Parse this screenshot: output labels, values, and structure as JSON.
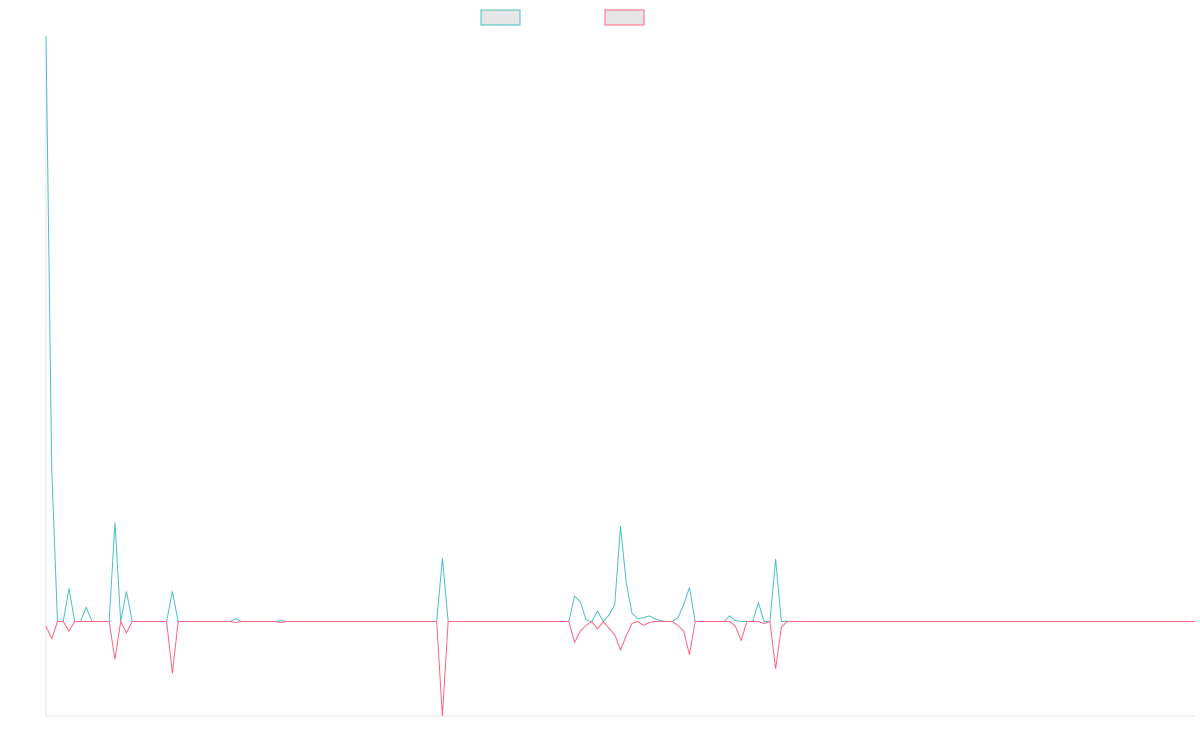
{
  "chart_data": {
    "type": "line",
    "title": "",
    "xlabel": "",
    "ylabel": "",
    "x_count": 200,
    "ylim": [
      -100,
      620
    ],
    "grid": false,
    "legend_position": "top-center",
    "series": [
      {
        "name": "",
        "color": "#4bc0c0",
        "fill": "#e6e6e6",
        "points": [
          [
            0,
            620
          ],
          [
            1,
            160
          ],
          [
            2,
            0
          ],
          [
            3,
            0
          ],
          [
            4,
            35
          ],
          [
            5,
            0
          ],
          [
            6,
            0
          ],
          [
            7,
            15
          ],
          [
            8,
            0
          ],
          [
            9,
            0
          ],
          [
            10,
            0
          ],
          [
            11,
            0
          ],
          [
            12,
            105
          ],
          [
            13,
            0
          ],
          [
            14,
            32
          ],
          [
            15,
            0
          ],
          [
            16,
            0
          ],
          [
            17,
            0
          ],
          [
            18,
            0
          ],
          [
            19,
            0
          ],
          [
            20,
            0
          ],
          [
            21,
            0
          ],
          [
            22,
            32
          ],
          [
            23,
            0
          ],
          [
            24,
            0
          ],
          [
            32,
            0
          ],
          [
            33,
            3
          ],
          [
            34,
            0
          ],
          [
            35,
            0
          ],
          [
            40,
            0
          ],
          [
            41,
            1
          ],
          [
            42,
            0
          ],
          [
            43,
            0
          ],
          [
            68,
            0
          ],
          [
            69,
            67
          ],
          [
            70,
            0
          ],
          [
            71,
            0
          ],
          [
            91,
            0
          ],
          [
            92,
            27
          ],
          [
            93,
            21
          ],
          [
            94,
            2
          ],
          [
            95,
            0
          ],
          [
            96,
            11
          ],
          [
            97,
            0
          ],
          [
            98,
            7
          ],
          [
            99,
            18
          ],
          [
            100,
            101
          ],
          [
            101,
            41
          ],
          [
            102,
            9
          ],
          [
            103,
            3
          ],
          [
            104,
            4
          ],
          [
            105,
            6
          ],
          [
            106,
            3
          ],
          [
            107,
            1
          ],
          [
            108,
            0
          ],
          [
            109,
            0
          ],
          [
            110,
            4
          ],
          [
            111,
            18
          ],
          [
            112,
            36
          ],
          [
            113,
            0
          ],
          [
            114,
            0
          ],
          [
            118,
            0
          ],
          [
            119,
            6
          ],
          [
            120,
            1
          ],
          [
            121,
            0
          ],
          [
            122,
            0
          ],
          [
            123,
            0
          ],
          [
            124,
            20
          ],
          [
            125,
            0
          ],
          [
            126,
            0
          ],
          [
            127,
            66
          ],
          [
            128,
            0
          ],
          [
            129,
            0
          ],
          [
            200,
            0
          ]
        ]
      },
      {
        "name": "",
        "color": "#ff6384",
        "fill": "#e6e6e6",
        "points": [
          [
            0,
            -5
          ],
          [
            1,
            -18
          ],
          [
            2,
            0
          ],
          [
            3,
            0
          ],
          [
            4,
            -10
          ],
          [
            5,
            0
          ],
          [
            6,
            0
          ],
          [
            7,
            0
          ],
          [
            11,
            0
          ],
          [
            12,
            -40
          ],
          [
            13,
            0
          ],
          [
            14,
            -12
          ],
          [
            15,
            0
          ],
          [
            21,
            0
          ],
          [
            22,
            -55
          ],
          [
            23,
            0
          ],
          [
            24,
            0
          ],
          [
            32,
            0
          ],
          [
            33,
            -1
          ],
          [
            34,
            0
          ],
          [
            35,
            0
          ],
          [
            40,
            0
          ],
          [
            41,
            -1
          ],
          [
            42,
            0
          ],
          [
            43,
            0
          ],
          [
            68,
            0
          ],
          [
            69,
            -100
          ],
          [
            70,
            0
          ],
          [
            71,
            0
          ],
          [
            91,
            0
          ],
          [
            92,
            -22
          ],
          [
            93,
            -10
          ],
          [
            94,
            -4
          ],
          [
            95,
            0
          ],
          [
            96,
            -8
          ],
          [
            97,
            0
          ],
          [
            98,
            -7
          ],
          [
            99,
            -14
          ],
          [
            100,
            -30
          ],
          [
            101,
            -15
          ],
          [
            102,
            -2
          ],
          [
            103,
            0
          ],
          [
            104,
            -4
          ],
          [
            105,
            -1
          ],
          [
            106,
            0
          ],
          [
            107,
            0
          ],
          [
            108,
            0
          ],
          [
            109,
            0
          ],
          [
            110,
            -4
          ],
          [
            111,
            -10
          ],
          [
            112,
            -35
          ],
          [
            113,
            0
          ],
          [
            114,
            0
          ],
          [
            118,
            0
          ],
          [
            119,
            0
          ],
          [
            120,
            -5
          ],
          [
            121,
            -20
          ],
          [
            122,
            0
          ],
          [
            123,
            0
          ],
          [
            124,
            0
          ],
          [
            125,
            -2
          ],
          [
            126,
            0
          ],
          [
            127,
            -50
          ],
          [
            128,
            -6
          ],
          [
            129,
            0
          ],
          [
            200,
            0
          ]
        ]
      }
    ]
  }
}
